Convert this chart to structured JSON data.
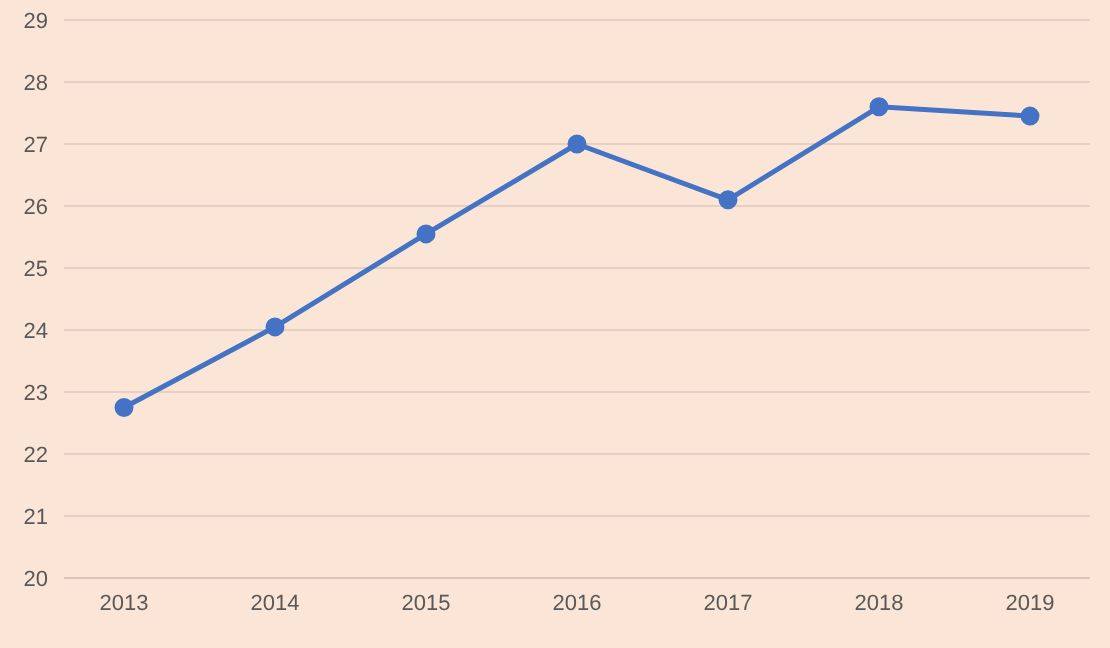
{
  "chart_data": {
    "type": "line",
    "categories": [
      "2013",
      "2014",
      "2015",
      "2016",
      "2017",
      "2018",
      "2019"
    ],
    "series": [
      {
        "color": "#4472c4",
        "values": [
          22.75,
          24.05,
          25.55,
          27.0,
          26.1,
          27.6,
          27.45
        ]
      }
    ],
    "ylim": [
      20,
      29
    ],
    "yticks": [
      20,
      21,
      22,
      23,
      24,
      25,
      26,
      27,
      28,
      29
    ],
    "grid": "y",
    "marker": "circle",
    "legend": false
  }
}
